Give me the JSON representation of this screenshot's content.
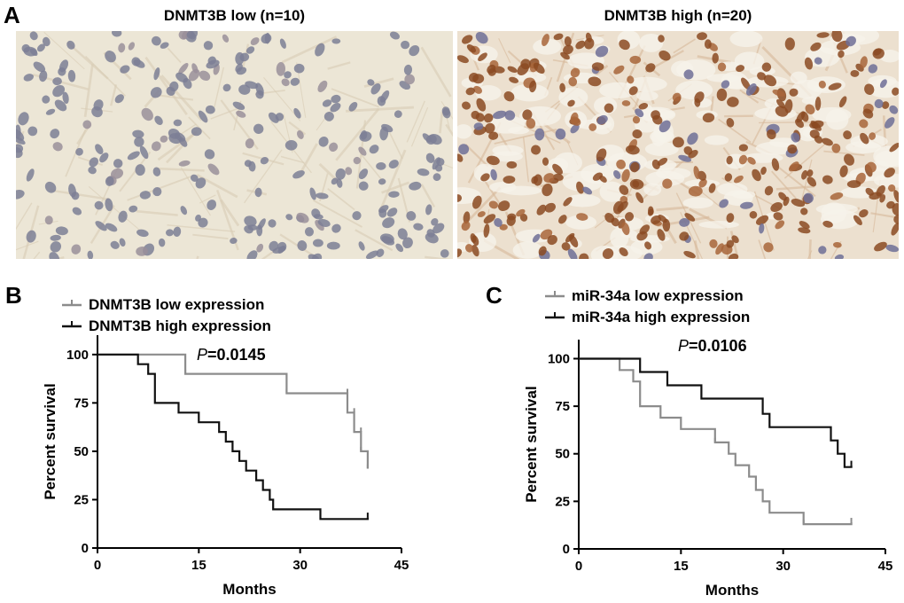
{
  "panel_a": {
    "letter": "A",
    "images": [
      {
        "title": "DNMT3B low (n=10)",
        "stain": "low"
      },
      {
        "title": "DNMT3B high (n=20)",
        "stain": "high"
      }
    ]
  },
  "colors": {
    "low": "#8c8c8c",
    "high": "#111111",
    "axis": "#000000"
  },
  "chart_data": [
    {
      "panel": "B",
      "type": "line",
      "title": "",
      "xlabel": "Months",
      "ylabel": "Percent survival",
      "xlim": [
        0,
        45
      ],
      "ylim": [
        0,
        110
      ],
      "xticks": [
        "0",
        "15",
        "30",
        "45"
      ],
      "yticks": [
        "0",
        "25",
        "50",
        "75",
        "100"
      ],
      "p_letter": "P",
      "p_value": "=0.0145",
      "series": [
        {
          "name": "DNMT3B low expression",
          "color": "#8c8c8c",
          "points": [
            [
              0,
              100
            ],
            [
              13,
              100
            ],
            [
              13,
              90
            ],
            [
              28,
              90
            ],
            [
              28,
              80
            ],
            [
              37,
              80
            ],
            [
              37,
              70
            ],
            [
              38,
              70
            ],
            [
              38,
              60
            ],
            [
              39,
              60
            ],
            [
              39,
              50
            ],
            [
              40,
              50
            ],
            [
              40,
              41
            ]
          ],
          "censors": [
            [
              13,
              90
            ],
            [
              28,
              80
            ],
            [
              37,
              80
            ],
            [
              38,
              70
            ],
            [
              39,
              60
            ],
            [
              39,
              50
            ],
            [
              40,
              41
            ]
          ]
        },
        {
          "name": "DNMT3B high expression",
          "color": "#111111",
          "points": [
            [
              0,
              100
            ],
            [
              6,
              100
            ],
            [
              6,
              95
            ],
            [
              7.5,
              95
            ],
            [
              7.5,
              90
            ],
            [
              8.5,
              90
            ],
            [
              8.5,
              75
            ],
            [
              12,
              75
            ],
            [
              12,
              70
            ],
            [
              15,
              70
            ],
            [
              15,
              65
            ],
            [
              18,
              65
            ],
            [
              18,
              60
            ],
            [
              19,
              60
            ],
            [
              19,
              55
            ],
            [
              20,
              55
            ],
            [
              20,
              50
            ],
            [
              21,
              50
            ],
            [
              21,
              45
            ],
            [
              22,
              45
            ],
            [
              22,
              40
            ],
            [
              23.5,
              40
            ],
            [
              23.5,
              35
            ],
            [
              24.5,
              35
            ],
            [
              24.5,
              30
            ],
            [
              25.5,
              30
            ],
            [
              25.5,
              25
            ],
            [
              26,
              25
            ],
            [
              26,
              20
            ],
            [
              33,
              20
            ],
            [
              33,
              15
            ],
            [
              40,
              15
            ],
            [
              40,
              16
            ]
          ],
          "censors": [
            [
              40,
              16
            ]
          ]
        }
      ]
    },
    {
      "panel": "C",
      "type": "line",
      "title": "",
      "xlabel": "Months",
      "ylabel": "Percent survival",
      "xlim": [
        0,
        45
      ],
      "ylim": [
        0,
        110
      ],
      "xticks": [
        "0",
        "15",
        "30",
        "45"
      ],
      "yticks": [
        "0",
        "25",
        "50",
        "75",
        "100"
      ],
      "p_letter": "P",
      "p_value": "=0.0106",
      "series": [
        {
          "name": "miR-34a low expression",
          "color": "#8c8c8c",
          "points": [
            [
              0,
              100
            ],
            [
              6,
              100
            ],
            [
              6,
              94
            ],
            [
              8,
              94
            ],
            [
              8,
              88
            ],
            [
              9,
              88
            ],
            [
              9,
              75
            ],
            [
              12,
              75
            ],
            [
              12,
              69
            ],
            [
              15,
              69
            ],
            [
              15,
              63
            ],
            [
              20,
              63
            ],
            [
              20,
              56
            ],
            [
              22,
              56
            ],
            [
              22,
              50
            ],
            [
              23,
              50
            ],
            [
              23,
              44
            ],
            [
              25,
              44
            ],
            [
              25,
              38
            ],
            [
              26,
              38
            ],
            [
              26,
              31
            ],
            [
              27,
              31
            ],
            [
              27,
              25
            ],
            [
              28,
              25
            ],
            [
              28,
              19
            ],
            [
              33,
              19
            ],
            [
              33,
              13
            ],
            [
              40,
              13
            ],
            [
              40,
              14
            ]
          ],
          "censors": [
            [
              8,
              88
            ],
            [
              20,
              56
            ],
            [
              33,
              13
            ],
            [
              40,
              14
            ]
          ]
        },
        {
          "name": "miR-34a high expression",
          "color": "#111111",
          "points": [
            [
              0,
              100
            ],
            [
              6,
              100
            ],
            [
              6,
              100
            ],
            [
              9,
              100
            ],
            [
              9,
              93
            ],
            [
              13,
              93
            ],
            [
              13,
              86
            ],
            [
              18,
              86
            ],
            [
              18,
              79
            ],
            [
              27,
              79
            ],
            [
              27,
              71
            ],
            [
              28,
              71
            ],
            [
              28,
              64
            ],
            [
              37,
              64
            ],
            [
              37,
              57
            ],
            [
              38,
              57
            ],
            [
              38,
              50
            ],
            [
              39,
              50
            ],
            [
              39,
              43
            ],
            [
              40,
              43
            ],
            [
              40,
              44
            ]
          ],
          "censors": [
            [
              40,
              44
            ]
          ]
        }
      ]
    }
  ]
}
